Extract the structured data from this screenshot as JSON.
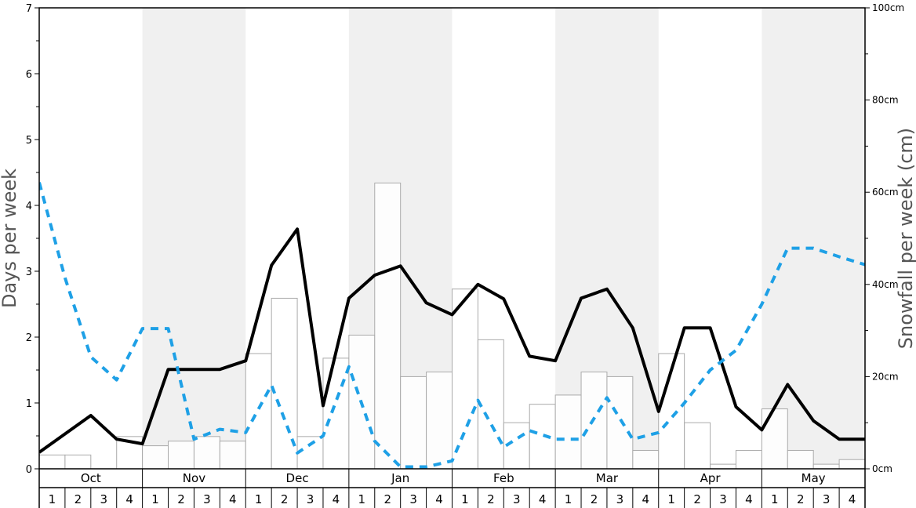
{
  "chart_data": {
    "type": "bar",
    "months": [
      "Oct",
      "Nov",
      "Dec",
      "Jan",
      "Feb",
      "Mar",
      "Apr",
      "May"
    ],
    "weeks": [
      "1",
      "2",
      "3",
      "4"
    ],
    "ylabel_left": "Days per week",
    "ylabel_right": "Snowfall per week (cm)",
    "ylim_left": [
      0,
      7
    ],
    "ylim_right": [
      0,
      100
    ],
    "left_ticks": [
      "0",
      "1",
      "2",
      "3",
      "4",
      "5",
      "6",
      "7"
    ],
    "right_ticks": [
      "0cm",
      "20cm",
      "40cm",
      "60cm",
      "80cm",
      "100cm"
    ],
    "snowfall_cm": [
      3,
      3,
      0,
      7,
      5,
      6,
      7,
      6,
      25,
      37,
      7,
      24,
      29,
      62,
      20,
      21,
      39,
      28,
      10,
      14,
      16,
      21,
      20,
      4,
      25,
      10,
      1,
      4,
      13,
      4,
      1,
      2
    ],
    "series": [
      {
        "name": "",
        "style": "solid",
        "color": "#000000",
        "values": [
          0.25,
          0.53,
          0.81,
          0.45,
          0.38,
          1.51,
          1.51,
          1.51,
          1.64,
          3.09,
          3.64,
          0.96,
          2.59,
          2.94,
          3.08,
          2.52,
          2.34,
          2.8,
          2.58,
          1.71,
          1.64,
          2.59,
          2.73,
          2.14,
          0.87,
          2.14,
          2.14,
          0.94,
          0.59,
          1.28,
          0.73,
          0.45,
          0.45
        ]
      },
      {
        "name": "",
        "style": "dashed",
        "color": "#1ea0e6",
        "values": [
          4.35,
          2.9,
          1.7,
          1.35,
          2.13,
          2.13,
          0.45,
          0.6,
          0.55,
          1.27,
          0.24,
          0.5,
          1.55,
          0.42,
          0.03,
          0.03,
          0.12,
          1.04,
          0.33,
          0.58,
          0.45,
          0.45,
          1.08,
          0.45,
          0.55,
          1.0,
          1.5,
          1.8,
          2.5,
          3.35,
          3.35,
          3.22,
          3.1
        ]
      }
    ],
    "shaded_months": [
      "Nov",
      "Jan",
      "Mar",
      "May"
    ],
    "colors": {
      "shade": "#f0f0f0",
      "bar_fill": "#ffffff",
      "bar_stroke": "#aaaaaa",
      "axis": "#000000"
    },
    "grid": false
  }
}
